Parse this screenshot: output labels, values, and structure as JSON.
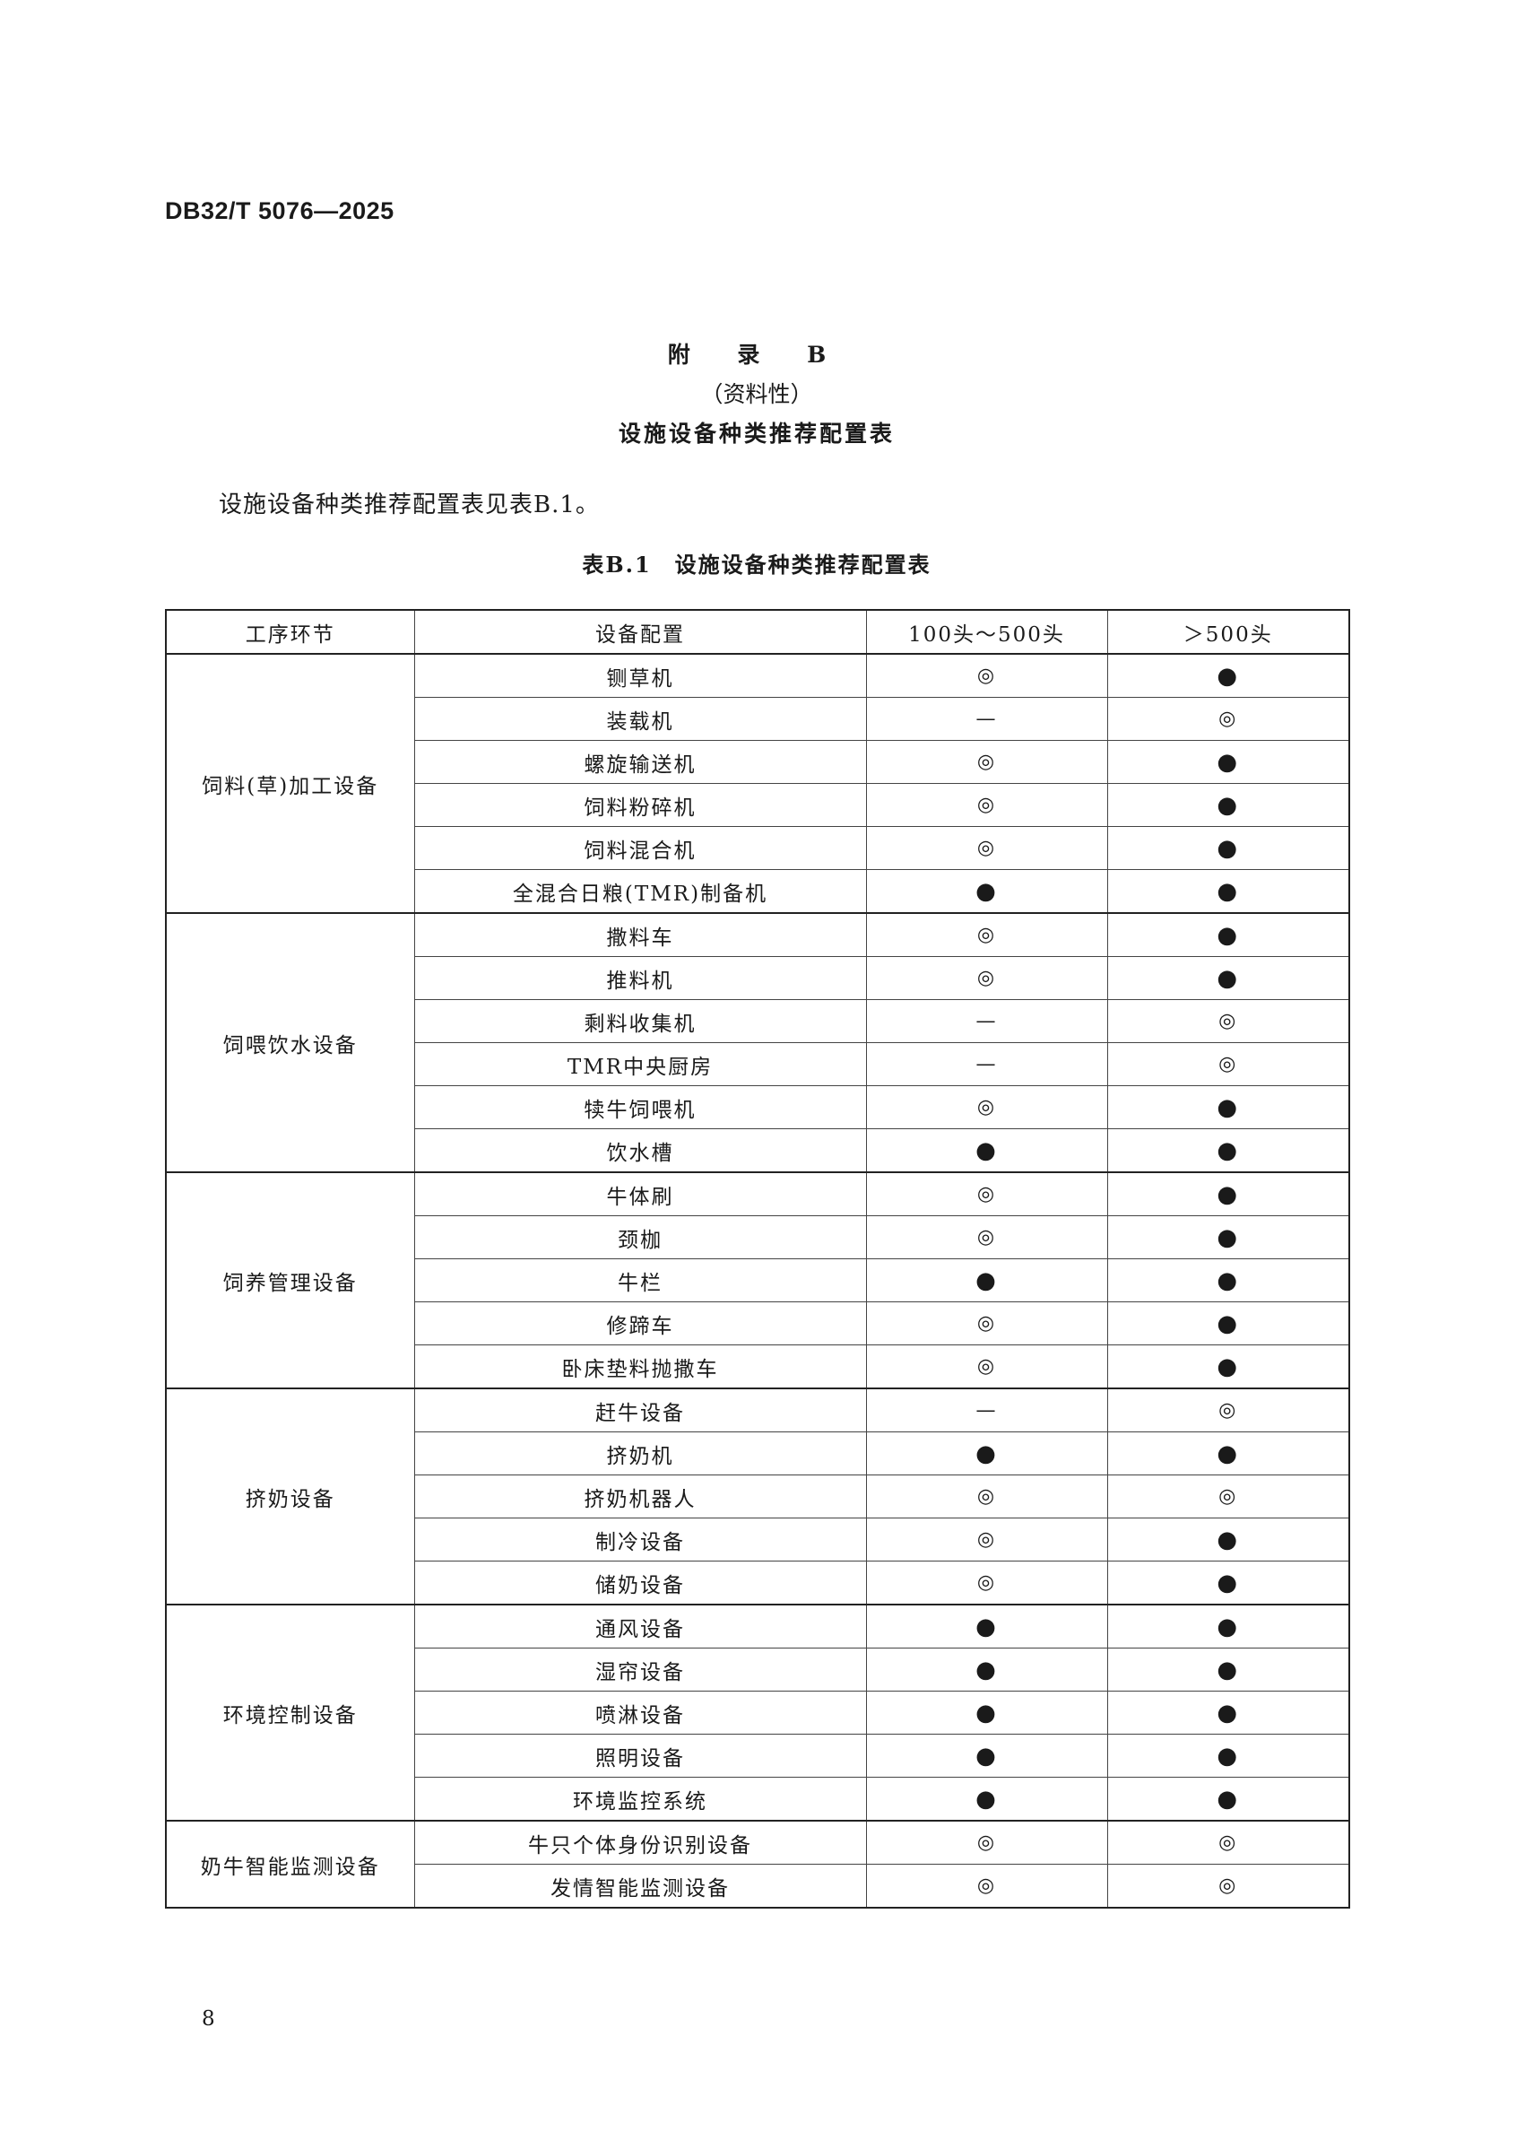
{
  "header": {
    "doc_code": "DB32/T 5076—2025"
  },
  "appendix": {
    "title": "附 录 B",
    "type": "（资料性）",
    "name": "设施设备种类推荐配置表"
  },
  "intro": "设施设备种类推荐配置表见表B.1。",
  "table": {
    "caption": "表B.1　设施设备种类推荐配置表",
    "columns": [
      "工序环节",
      "设备配置",
      "100头～500头",
      "＞500头"
    ],
    "groups": [
      {
        "name": "饲料(草)加工设备",
        "rows": [
          {
            "item": "铡草机",
            "small": "◎",
            "large": "●"
          },
          {
            "item": "装载机",
            "small": "—",
            "large": "◎"
          },
          {
            "item": "螺旋输送机",
            "small": "◎",
            "large": "●"
          },
          {
            "item": "饲料粉碎机",
            "small": "◎",
            "large": "●"
          },
          {
            "item": "饲料混合机",
            "small": "◎",
            "large": "●"
          },
          {
            "item": "全混合日粮(TMR)制备机",
            "small": "●",
            "large": "●"
          }
        ]
      },
      {
        "name": "饲喂饮水设备",
        "rows": [
          {
            "item": "撒料车",
            "small": "◎",
            "large": "●"
          },
          {
            "item": "推料机",
            "small": "◎",
            "large": "●"
          },
          {
            "item": "剩料收集机",
            "small": "—",
            "large": "◎"
          },
          {
            "item": "TMR中央厨房",
            "small": "—",
            "large": "◎"
          },
          {
            "item": "犊牛饲喂机",
            "small": "◎",
            "large": "●"
          },
          {
            "item": "饮水槽",
            "small": "●",
            "large": "●"
          }
        ]
      },
      {
        "name": "饲养管理设备",
        "rows": [
          {
            "item": "牛体刷",
            "small": "◎",
            "large": "●"
          },
          {
            "item": "颈枷",
            "small": "◎",
            "large": "●"
          },
          {
            "item": "牛栏",
            "small": "●",
            "large": "●"
          },
          {
            "item": "修蹄车",
            "small": "◎",
            "large": "●"
          },
          {
            "item": "卧床垫料抛撒车",
            "small": "◎",
            "large": "●"
          }
        ]
      },
      {
        "name": "挤奶设备",
        "rows": [
          {
            "item": "赶牛设备",
            "small": "—",
            "large": "◎"
          },
          {
            "item": "挤奶机",
            "small": "●",
            "large": "●"
          },
          {
            "item": "挤奶机器人",
            "small": "◎",
            "large": "◎"
          },
          {
            "item": "制冷设备",
            "small": "◎",
            "large": "●"
          },
          {
            "item": "储奶设备",
            "small": "◎",
            "large": "●"
          }
        ]
      },
      {
        "name": "环境控制设备",
        "rows": [
          {
            "item": "通风设备",
            "small": "●",
            "large": "●"
          },
          {
            "item": "湿帘设备",
            "small": "●",
            "large": "●"
          },
          {
            "item": "喷淋设备",
            "small": "●",
            "large": "●"
          },
          {
            "item": "照明设备",
            "small": "●",
            "large": "●"
          },
          {
            "item": "环境监控系统",
            "small": "●",
            "large": "●"
          }
        ]
      },
      {
        "name": "奶牛智能监测设备",
        "rows": [
          {
            "item": "牛只个体身份识别设备",
            "small": "◎",
            "large": "◎"
          },
          {
            "item": "发情智能监测设备",
            "small": "◎",
            "large": "◎"
          }
        ]
      }
    ]
  },
  "page_number": "8"
}
